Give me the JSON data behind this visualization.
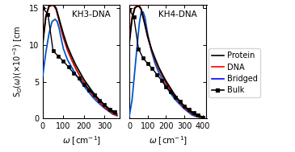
{
  "title_left": "KH3-DNA",
  "title_right": "KH4-DNA",
  "xlim_left": [
    0,
    375
  ],
  "xlim_right": [
    0,
    420
  ],
  "ylim": [
    0,
    15.5
  ],
  "yticks": [
    0,
    5,
    10,
    15
  ],
  "xticks_left": [
    0,
    100,
    200,
    300
  ],
  "xticks_right": [
    0,
    100,
    200,
    300,
    400
  ],
  "colors": {
    "protein": "#000000",
    "dna": "#cc0000",
    "bridged": "#0055cc",
    "bulk": "#000000"
  },
  "kh3": {
    "protein_x": [
      0,
      15,
      30,
      45,
      55,
      65,
      80,
      100,
      120,
      140,
      160,
      180,
      200,
      220,
      240,
      260,
      280,
      300,
      320,
      340,
      360
    ],
    "protein_y": [
      10.2,
      13.8,
      15.3,
      15.5,
      15.4,
      15.0,
      13.5,
      11.5,
      9.8,
      8.5,
      7.3,
      6.3,
      5.3,
      4.5,
      3.7,
      3.0,
      2.4,
      1.8,
      1.3,
      0.9,
      0.6
    ],
    "dna_x": [
      0,
      15,
      30,
      45,
      55,
      65,
      80,
      100,
      120,
      140,
      160,
      180,
      200,
      220,
      240,
      260,
      280,
      300,
      320,
      340,
      360
    ],
    "dna_y": [
      10.5,
      14.0,
      15.2,
      15.4,
      15.3,
      14.8,
      13.2,
      11.0,
      9.3,
      8.0,
      6.8,
      5.8,
      4.9,
      4.1,
      3.3,
      2.7,
      2.1,
      1.5,
      1.1,
      0.7,
      0.4
    ],
    "bridged_x": [
      0,
      15,
      30,
      45,
      60,
      70,
      80,
      90,
      100,
      120,
      140,
      160,
      180,
      200,
      220,
      240,
      260,
      280,
      300,
      320,
      340,
      360
    ],
    "bridged_y": [
      5.8,
      9.0,
      11.5,
      13.2,
      13.5,
      13.2,
      12.2,
      10.8,
      9.5,
      8.0,
      7.0,
      6.0,
      5.2,
      4.4,
      3.7,
      3.0,
      2.4,
      1.9,
      1.4,
      1.0,
      0.6,
      0.4
    ],
    "bulk_x": [
      0,
      25,
      50,
      75,
      100,
      125,
      150,
      175,
      200,
      225,
      250,
      275,
      300,
      325,
      350
    ],
    "bulk_y": [
      15.0,
      14.2,
      9.2,
      8.5,
      7.8,
      7.0,
      6.2,
      5.5,
      4.6,
      3.9,
      3.2,
      2.5,
      1.9,
      1.3,
      0.9
    ]
  },
  "kh4": {
    "protein_x": [
      0,
      15,
      30,
      45,
      55,
      65,
      80,
      100,
      120,
      140,
      160,
      180,
      200,
      220,
      240,
      260,
      280,
      300,
      320,
      340,
      360,
      380,
      400
    ],
    "protein_y": [
      10.2,
      13.5,
      15.0,
      15.3,
      15.2,
      14.8,
      13.3,
      11.2,
      9.5,
      8.2,
      7.0,
      6.0,
      5.1,
      4.3,
      3.5,
      2.8,
      2.2,
      1.7,
      1.2,
      0.8,
      0.5,
      0.3,
      0.2
    ],
    "dna_x": [
      0,
      15,
      30,
      45,
      55,
      65,
      80,
      100,
      120,
      140,
      160,
      180,
      200,
      220,
      240,
      260,
      280,
      300,
      320,
      340,
      360,
      380,
      400
    ],
    "dna_y": [
      10.5,
      13.8,
      15.1,
      15.4,
      15.3,
      14.9,
      13.4,
      11.1,
      9.4,
      8.0,
      6.8,
      5.8,
      4.8,
      4.0,
      3.2,
      2.6,
      2.0,
      1.5,
      1.0,
      0.7,
      0.4,
      0.2,
      0.15
    ],
    "bridged_x": [
      0,
      15,
      30,
      45,
      55,
      65,
      75,
      85,
      100,
      120,
      140,
      160,
      180,
      200,
      220,
      240,
      260,
      280,
      300,
      320,
      340,
      360,
      380,
      400
    ],
    "bridged_y": [
      0.3,
      2.5,
      6.5,
      10.5,
      13.0,
      14.5,
      14.5,
      13.8,
      11.5,
      9.2,
      7.5,
      6.3,
      5.3,
      4.4,
      3.6,
      2.9,
      2.3,
      1.8,
      1.3,
      0.9,
      0.5,
      0.3,
      0.2,
      0.1
    ],
    "bulk_x": [
      0,
      25,
      50,
      75,
      100,
      125,
      150,
      175,
      200,
      225,
      250,
      275,
      300,
      325,
      350,
      375,
      400
    ],
    "bulk_y": [
      14.8,
      13.8,
      9.5,
      8.2,
      7.5,
      6.8,
      6.0,
      5.2,
      4.3,
      3.6,
      2.9,
      2.3,
      1.7,
      1.2,
      0.8,
      0.5,
      0.2
    ]
  }
}
